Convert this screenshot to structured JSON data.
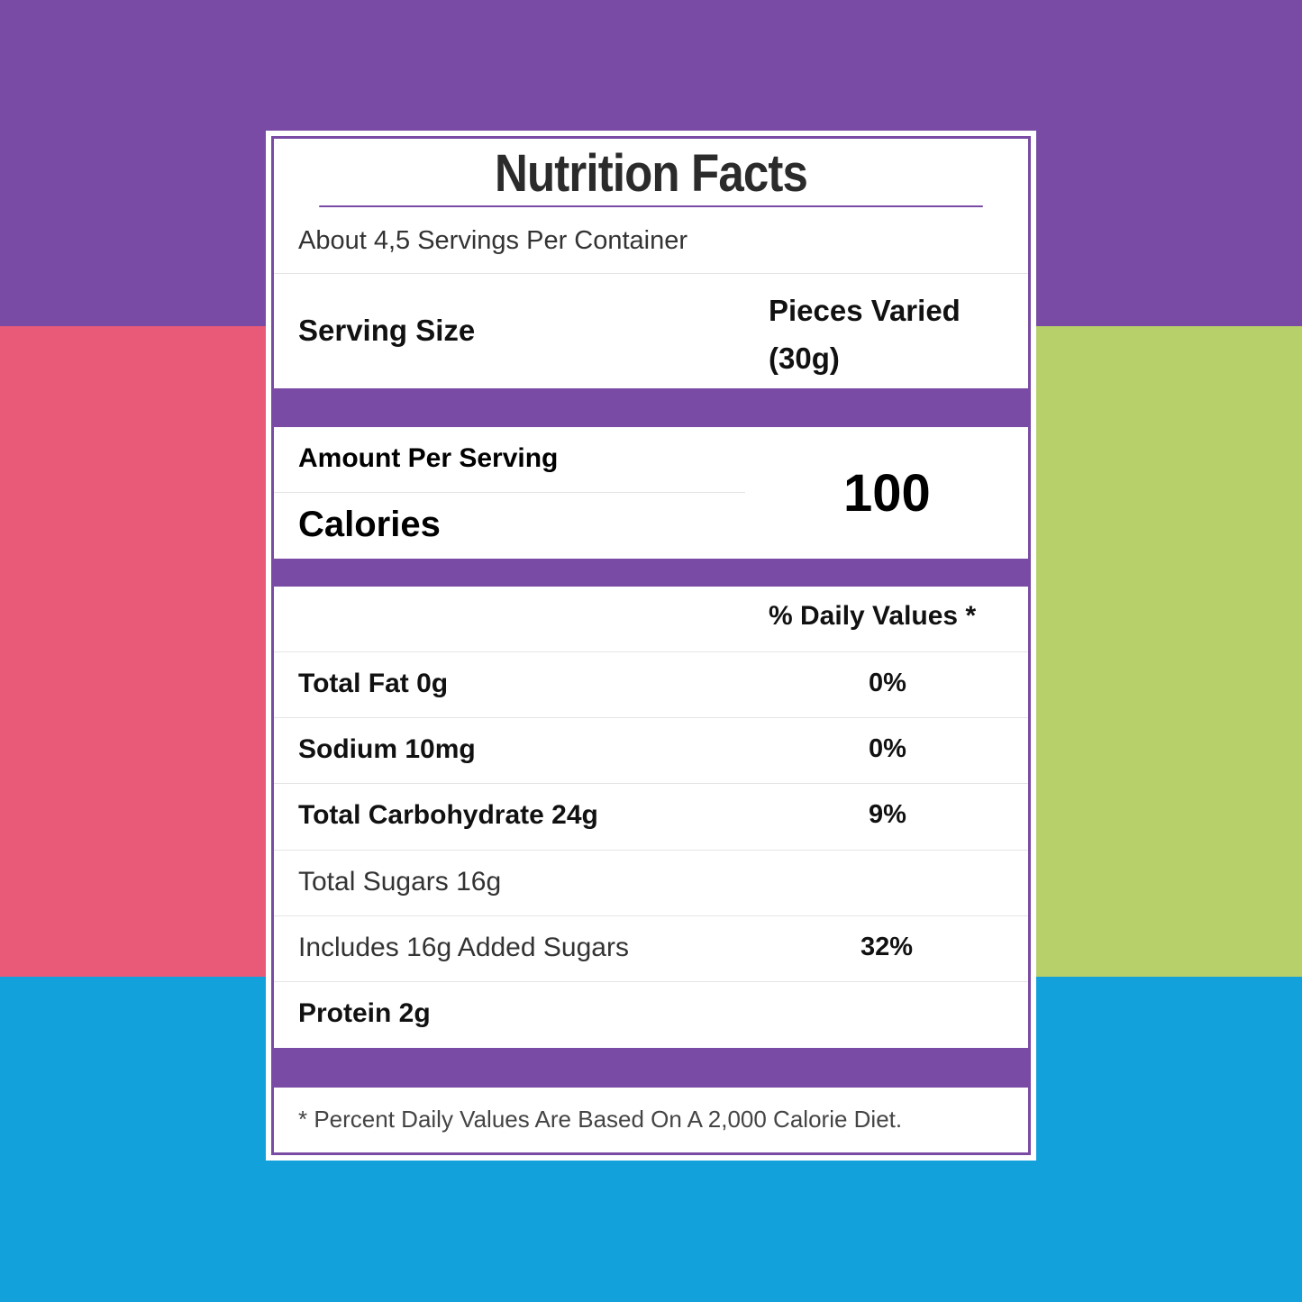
{
  "colors": {
    "purple": "#7a4ba4",
    "pink": "#e85a78",
    "green": "#b8d06a",
    "blue": "#12a1db"
  },
  "label": {
    "title": "Nutrition Facts",
    "servings_per_container": "About 4,5 Servings Per Container",
    "serving_size_label": "Serving Size",
    "serving_size_value": "Pieces Varied (30g)",
    "amount_per_serving": "Amount Per Serving",
    "calories_label": "Calories",
    "calories_value": "100",
    "daily_values_header": "% Daily Values *",
    "nutrients": [
      {
        "label": "Total Fat 0g",
        "dv": "0%"
      },
      {
        "label": "Sodium 10mg",
        "dv": "0%"
      },
      {
        "label": "Total Carbohydrate 24g",
        "dv": "9%"
      },
      {
        "label": "Total Sugars 16g",
        "dv": ""
      },
      {
        "label": "Includes 16g Added Sugars",
        "dv": "32%"
      },
      {
        "label": "Protein 2g",
        "dv": ""
      }
    ],
    "footnote": "* Percent Daily Values Are Based On A 2,000 Calorie Diet."
  }
}
